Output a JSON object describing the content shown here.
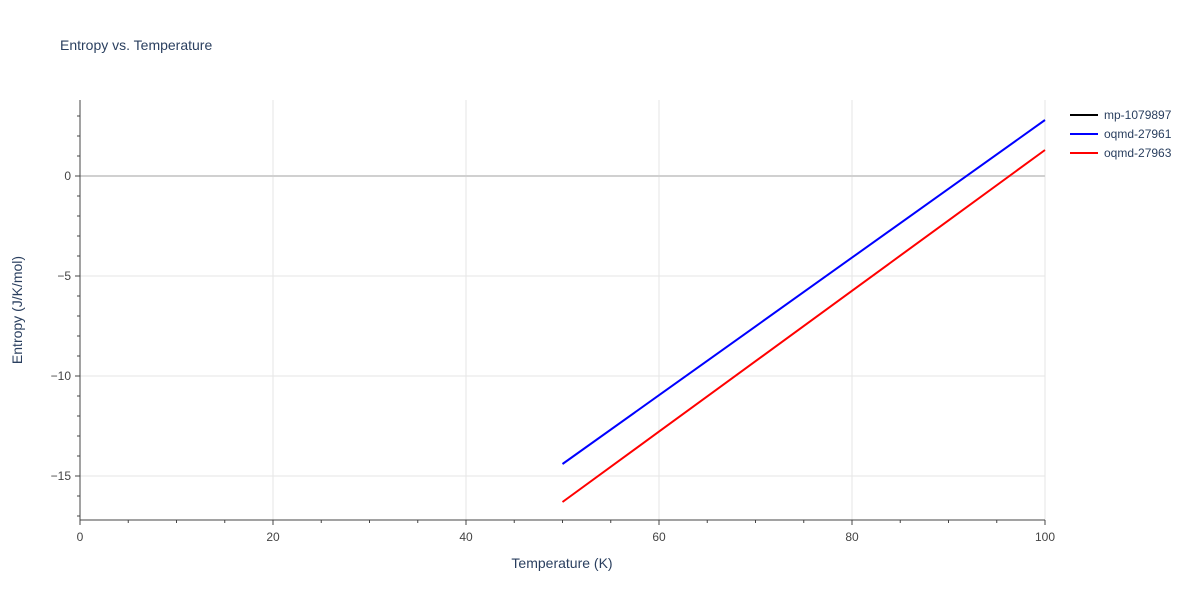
{
  "chart_data": {
    "type": "line",
    "title": "Entropy vs. Temperature",
    "xlabel": "Temperature (K)",
    "ylabel": "Entropy (J/K/mol)",
    "xlim": [
      0,
      100
    ],
    "ylim": [
      -17.2,
      3.8
    ],
    "x_ticks": [
      0,
      20,
      40,
      60,
      80,
      100
    ],
    "y_ticks": [
      -15,
      -10,
      -5,
      0
    ],
    "x_tick_labels": [
      "0",
      "20",
      "40",
      "60",
      "80",
      "100"
    ],
    "y_tick_labels": [
      "−15",
      "−10",
      "−5",
      "0"
    ],
    "grid": true,
    "legend_position": "top-right",
    "series": [
      {
        "name": "mp-1079897",
        "color": "#000000",
        "x": [],
        "y": []
      },
      {
        "name": "oqmd-27961",
        "color": "#0000ff",
        "x": [
          50,
          60,
          70,
          80,
          90,
          100
        ],
        "y": [
          -14.4,
          -10.96,
          -7.52,
          -4.08,
          -0.64,
          2.8
        ]
      },
      {
        "name": "oqmd-27963",
        "color": "#ff0000",
        "x": [
          50,
          60,
          70,
          80,
          90,
          100
        ],
        "y": [
          -16.3,
          -12.78,
          -9.26,
          -5.74,
          -2.22,
          1.3
        ]
      }
    ]
  }
}
